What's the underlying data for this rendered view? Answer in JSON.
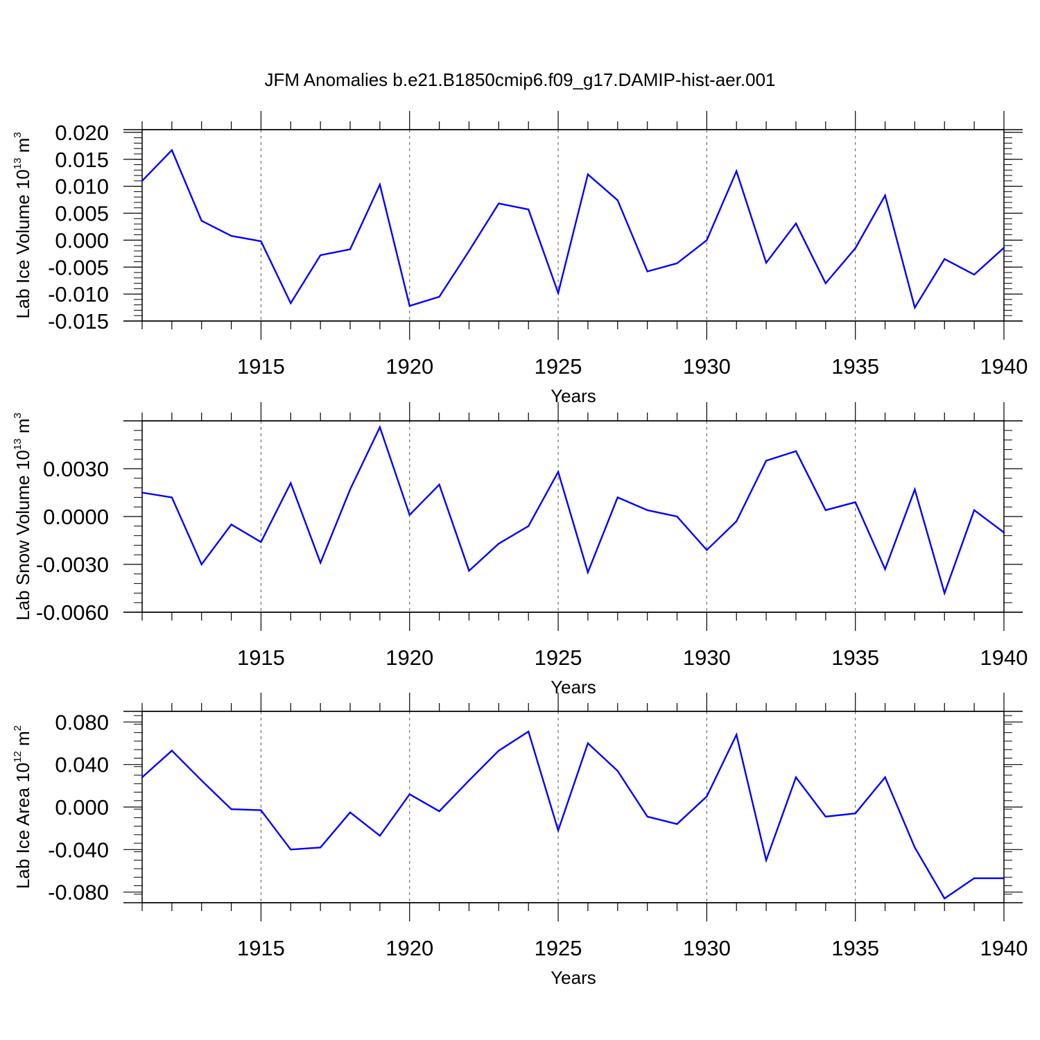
{
  "title": "JFM Anomalies b.e21.B1850cmip6.f09_g17.DAMIP-hist-aer.001",
  "colors": {
    "line": "#0000ff",
    "axes": "#000000",
    "grid": "#555555"
  },
  "chart_data": [
    {
      "type": "line",
      "ylabel": {
        "text": "Lab Ice Volume 10",
        "exponent": "13",
        "unit": " m",
        "unit_exponent": "3"
      },
      "xlabel": "Years",
      "xlim": [
        1911,
        1940
      ],
      "ylim": [
        -0.015,
        0.0205
      ],
      "xticks": [
        1915,
        1920,
        1925,
        1930,
        1935,
        1940
      ],
      "yticks": [
        {
          "value": 0.02,
          "label": "0.020"
        },
        {
          "value": 0.015,
          "label": "0.015"
        },
        {
          "value": 0.01,
          "label": "0.010"
        },
        {
          "value": 0.005,
          "label": "0.005"
        },
        {
          "value": 0.0,
          "label": "0.000"
        },
        {
          "value": -0.005,
          "label": "-0.005"
        },
        {
          "value": -0.01,
          "label": "-0.010"
        },
        {
          "value": -0.015,
          "label": "-0.015"
        }
      ],
      "grid": "vertical dashed at major x ticks",
      "x": [
        1911,
        1912,
        1913,
        1914,
        1915,
        1916,
        1917,
        1918,
        1919,
        1920,
        1921,
        1922,
        1923,
        1924,
        1925,
        1926,
        1927,
        1928,
        1929,
        1930,
        1931,
        1932,
        1933,
        1934,
        1935,
        1936,
        1937,
        1938,
        1939,
        1940
      ],
      "values": [
        0.011,
        0.0167,
        0.0036,
        0.0008,
        -0.0002,
        -0.0117,
        -0.0028,
        -0.0017,
        0.0103,
        -0.0122,
        -0.0105,
        -0.002,
        0.0068,
        0.0057,
        -0.0098,
        0.0122,
        0.0074,
        -0.0058,
        -0.0043,
        0.0,
        0.0128,
        -0.0042,
        0.0031,
        -0.008,
        -0.0015,
        0.0083,
        -0.0125,
        -0.0035,
        -0.0064,
        -0.0014
      ]
    },
    {
      "type": "line",
      "ylabel": {
        "text": "Lab Snow Volume 10",
        "exponent": "13",
        "unit": " m",
        "unit_exponent": "3"
      },
      "xlabel": "Years",
      "xlim": [
        1911,
        1940
      ],
      "ylim": [
        -0.006,
        0.006
      ],
      "xticks": [
        1915,
        1920,
        1925,
        1930,
        1935,
        1940
      ],
      "yticks": [
        {
          "value": 0.003,
          "label": "0.0030"
        },
        {
          "value": 0.0,
          "label": "0.0000"
        },
        {
          "value": -0.003,
          "label": "-0.0030"
        },
        {
          "value": -0.006,
          "label": "-0.0060"
        }
      ],
      "grid": "vertical dashed at major x ticks",
      "x": [
        1911,
        1912,
        1913,
        1914,
        1915,
        1916,
        1917,
        1918,
        1919,
        1920,
        1921,
        1922,
        1923,
        1924,
        1925,
        1926,
        1927,
        1928,
        1929,
        1930,
        1931,
        1932,
        1933,
        1934,
        1935,
        1936,
        1937,
        1938,
        1939,
        1940
      ],
      "values": [
        0.0015,
        0.0012,
        -0.003,
        -0.0005,
        -0.0016,
        0.0021,
        -0.0029,
        0.0017,
        0.0056,
        0.0001,
        0.002,
        -0.0034,
        -0.0017,
        -0.0006,
        0.0028,
        -0.0035,
        0.0012,
        0.0004,
        0.0,
        -0.0021,
        -0.0003,
        0.0035,
        0.0041,
        0.0004,
        0.0009,
        -0.0033,
        0.0017,
        -0.0048,
        0.0004,
        -0.001
      ]
    },
    {
      "type": "line",
      "ylabel": {
        "text": "Lab Ice Area 10",
        "exponent": "12",
        "unit": " m",
        "unit_exponent": "2"
      },
      "xlabel": "Years",
      "xlim": [
        1911,
        1940
      ],
      "ylim": [
        -0.09,
        0.09
      ],
      "xticks": [
        1915,
        1920,
        1925,
        1930,
        1935,
        1940
      ],
      "yticks": [
        {
          "value": 0.08,
          "label": "0.080"
        },
        {
          "value": 0.04,
          "label": "0.040"
        },
        {
          "value": 0.0,
          "label": "0.000"
        },
        {
          "value": -0.04,
          "label": "-0.040"
        },
        {
          "value": -0.08,
          "label": "-0.080"
        }
      ],
      "grid": "vertical dashed at major x ticks",
      "x": [
        1911,
        1912,
        1913,
        1914,
        1915,
        1916,
        1917,
        1918,
        1919,
        1920,
        1921,
        1922,
        1923,
        1924,
        1925,
        1926,
        1927,
        1928,
        1929,
        1930,
        1931,
        1932,
        1933,
        1934,
        1935,
        1936,
        1937,
        1938,
        1939,
        1940
      ],
      "values": [
        0.028,
        0.053,
        0.025,
        -0.002,
        -0.003,
        -0.04,
        -0.038,
        -0.005,
        -0.027,
        0.012,
        -0.004,
        0.025,
        0.053,
        0.071,
        -0.022,
        0.06,
        0.034,
        -0.009,
        -0.016,
        0.01,
        0.068,
        -0.05,
        0.028,
        -0.009,
        -0.006,
        0.028,
        -0.038,
        -0.086,
        -0.067,
        -0.067
      ]
    }
  ]
}
